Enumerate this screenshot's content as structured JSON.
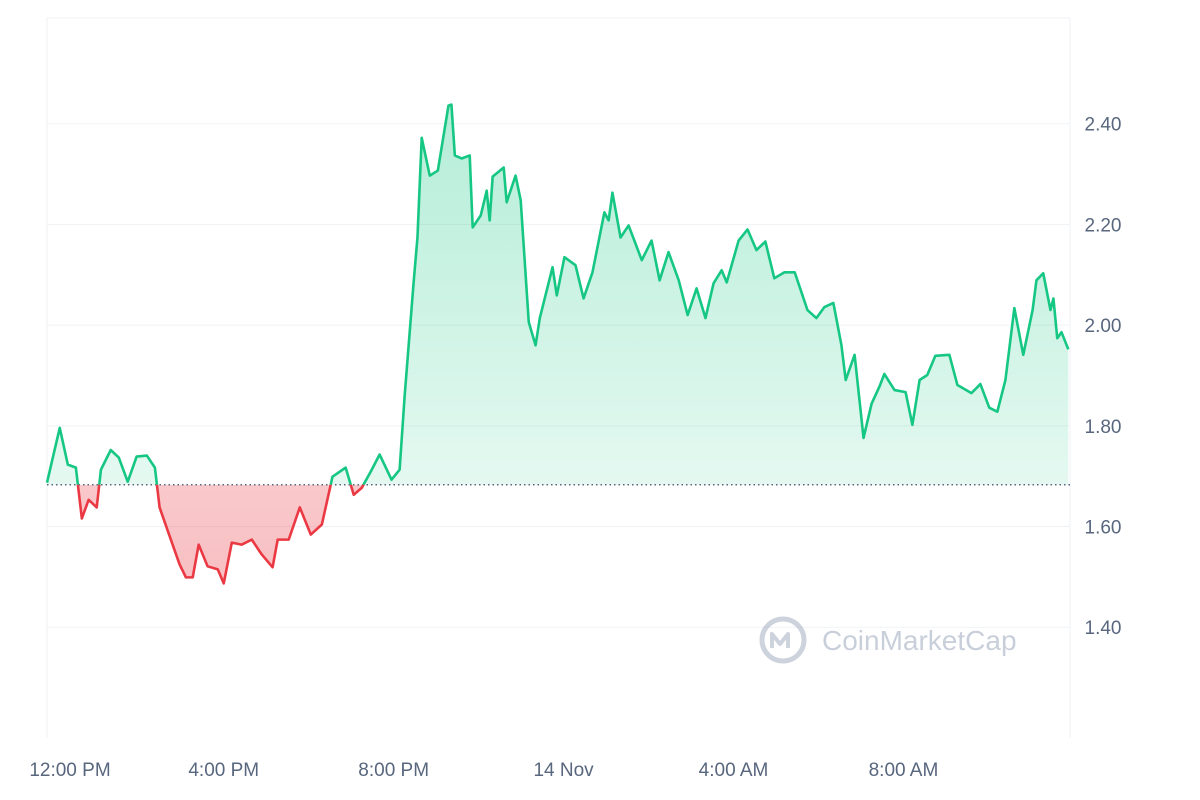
{
  "chart_data": {
    "type": "line",
    "watermark": "CoinMarketCap",
    "up_color": "#16c784",
    "down_color": "#ea3943",
    "baseline": 1.683,
    "grid": true,
    "xlim": [
      -0.16,
      23.92
    ],
    "ylim": [
      1.18,
      2.61
    ],
    "xticks": [
      {
        "value": 0,
        "label": "12:00 PM"
      },
      {
        "value": 4,
        "label": "4:00 PM"
      },
      {
        "value": 8,
        "label": "8:00 PM"
      },
      {
        "value": 12,
        "label": "14 Nov"
      },
      {
        "value": 16,
        "label": "4:00 AM"
      },
      {
        "value": 20,
        "label": "8:00 AM"
      }
    ],
    "yticks": [
      {
        "value": 1.4,
        "label": "1.40"
      },
      {
        "value": 1.6,
        "label": "1.60"
      },
      {
        "value": 1.8,
        "label": "1.80"
      },
      {
        "value": 2.0,
        "label": "2.00"
      },
      {
        "value": 2.2,
        "label": "2.20"
      },
      {
        "value": 2.4,
        "label": "2.40"
      }
    ],
    "x": [
      -0.16,
      0.14,
      0.33,
      0.52,
      0.66,
      0.82,
      1.01,
      1.11,
      1.34,
      1.53,
      1.74,
      1.95,
      2.19,
      2.38,
      2.49,
      2.73,
      2.96,
      3.11,
      3.27,
      3.41,
      3.62,
      3.86,
      4.0,
      4.19,
      4.42,
      4.66,
      4.89,
      5.15,
      5.27,
      5.53,
      5.79,
      6.05,
      6.31,
      6.56,
      6.87,
      7.06,
      7.25,
      7.46,
      7.67,
      7.95,
      8.14,
      8.26,
      8.47,
      8.56,
      8.66,
      8.85,
      9.04,
      9.29,
      9.36,
      9.44,
      9.6,
      9.79,
      9.86,
      10.05,
      10.19,
      10.26,
      10.33,
      10.59,
      10.66,
      10.87,
      10.99,
      11.18,
      11.34,
      11.44,
      11.74,
      11.84,
      12.02,
      12.28,
      12.47,
      12.68,
      12.96,
      13.06,
      13.15,
      13.34,
      13.53,
      13.84,
      14.07,
      14.26,
      14.47,
      14.71,
      14.92,
      15.13,
      15.34,
      15.53,
      15.72,
      15.84,
      16.12,
      16.33,
      16.54,
      16.75,
      16.96,
      17.2,
      17.44,
      17.74,
      17.95,
      18.14,
      18.35,
      18.54,
      18.64,
      18.85,
      19.06,
      19.25,
      19.44,
      19.55,
      19.79,
      20.05,
      20.21,
      20.38,
      20.56,
      20.75,
      21.08,
      21.27,
      21.6,
      21.81,
      22.02,
      22.21,
      22.4,
      22.61,
      22.82,
      23.04,
      23.13,
      23.29,
      23.46,
      23.53,
      23.62,
      23.72,
      23.88
    ],
    "values": [
      1.687,
      1.796,
      1.723,
      1.717,
      1.616,
      1.653,
      1.638,
      1.713,
      1.752,
      1.737,
      1.689,
      1.739,
      1.741,
      1.717,
      1.638,
      1.58,
      1.525,
      1.499,
      1.499,
      1.564,
      1.521,
      1.515,
      1.487,
      1.568,
      1.564,
      1.574,
      1.545,
      1.519,
      1.574,
      1.574,
      1.638,
      1.584,
      1.604,
      1.699,
      1.717,
      1.663,
      1.677,
      1.709,
      1.743,
      1.693,
      1.713,
      1.861,
      2.085,
      2.174,
      2.372,
      2.297,
      2.307,
      2.436,
      2.438,
      2.337,
      2.331,
      2.337,
      2.194,
      2.218,
      2.267,
      2.208,
      2.295,
      2.313,
      2.244,
      2.297,
      2.248,
      2.006,
      1.96,
      2.014,
      2.115,
      2.059,
      2.135,
      2.119,
      2.053,
      2.105,
      2.224,
      2.208,
      2.263,
      2.174,
      2.198,
      2.129,
      2.168,
      2.089,
      2.145,
      2.089,
      2.02,
      2.073,
      2.014,
      2.083,
      2.109,
      2.085,
      2.168,
      2.19,
      2.149,
      2.166,
      2.093,
      2.105,
      2.105,
      2.03,
      2.014,
      2.036,
      2.044,
      1.96,
      1.891,
      1.941,
      1.776,
      1.844,
      1.879,
      1.903,
      1.871,
      1.867,
      1.802,
      1.891,
      1.901,
      1.939,
      1.941,
      1.881,
      1.865,
      1.883,
      1.836,
      1.828,
      1.891,
      2.034,
      1.941,
      2.03,
      2.089,
      2.103,
      2.03,
      2.053,
      1.974,
      1.986,
      1.952
    ]
  }
}
